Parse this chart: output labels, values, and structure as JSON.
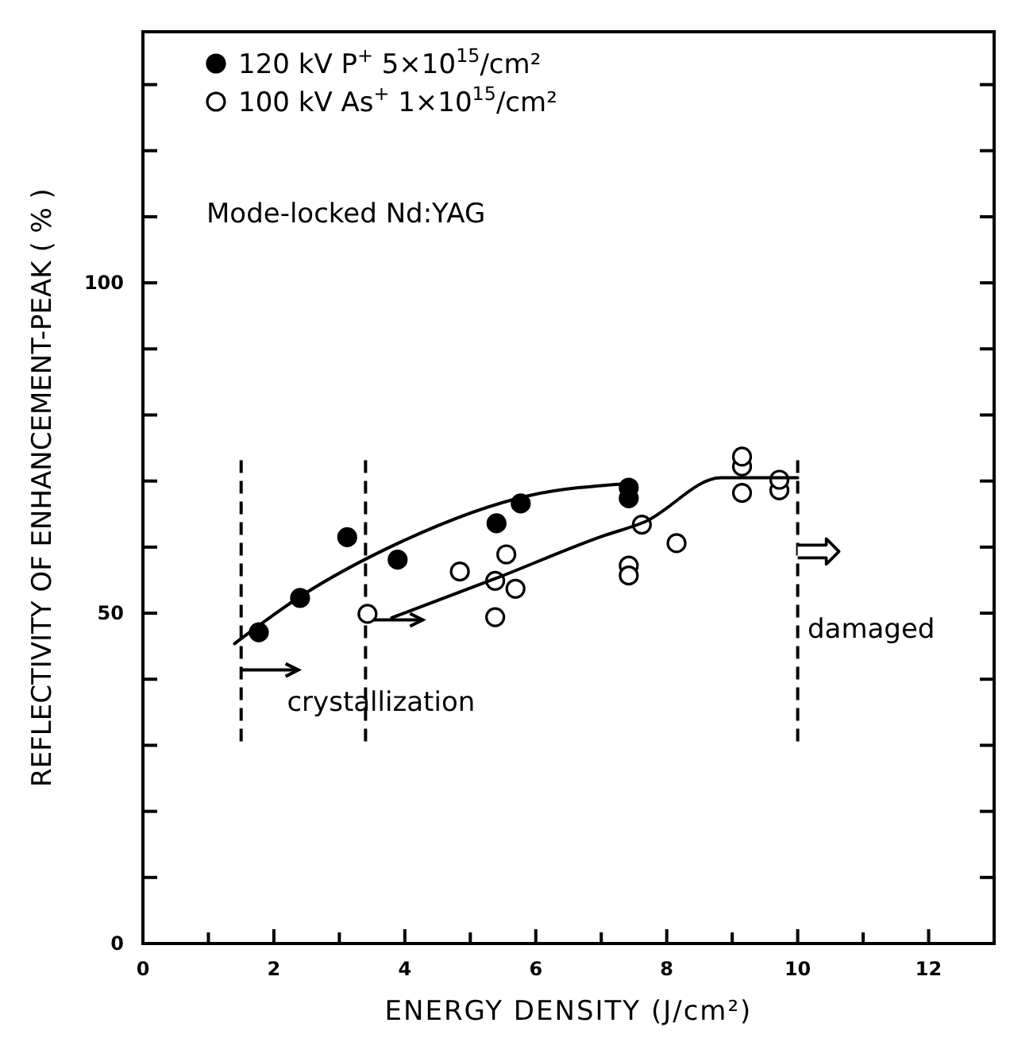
{
  "chart_data": {
    "type": "scatter",
    "xlabel": "ENERGY  DENSITY  (J/cm²)",
    "ylabel": "REFLECTIVITY  OF ENHANCEMENT-PEAK ( % )",
    "xlim": [
      0,
      13
    ],
    "ylim": [
      0,
      138
    ],
    "xticks": [
      0,
      {
        "value": 1,
        "label": null
      },
      2,
      {
        "value": 3,
        "label": null
      },
      4,
      {
        "value": 5,
        "label": null
      },
      6,
      {
        "value": 7,
        "label": null
      },
      8,
      {
        "value": 9,
        "label": null
      },
      10,
      {
        "value": 11,
        "label": null
      },
      12
    ],
    "yticks": [
      0,
      {
        "value": 10,
        "label": null
      },
      {
        "value": 20,
        "label": null
      },
      {
        "value": 30,
        "label": null
      },
      {
        "value": 40,
        "label": null
      },
      50,
      {
        "value": 60,
        "label": null
      },
      {
        "value": 70,
        "label": null
      },
      {
        "value": 80,
        "label": null
      },
      {
        "value": 90,
        "label": null
      },
      100,
      {
        "value": 110,
        "label": null
      },
      {
        "value": 120,
        "label": null
      },
      {
        "value": 130,
        "label": null
      }
    ],
    "grid": false,
    "legend": "top left",
    "series": [
      {
        "name": "120 kV  P$^{+}$  5×10$^{15}$/cm²",
        "color": "#000000",
        "marker": "circle",
        "x": [
          1.77,
          2.4,
          3.12,
          3.89,
          5.4,
          5.77,
          7.42,
          7.42
        ],
        "values": [
          47.1,
          52.3,
          61.5,
          58.1,
          63.6,
          66.6,
          69.0,
          67.4
        ]
      },
      {
        "name": "100 kV As$^{+}$  1×10$^{15}$/cm²",
        "color": "#ffffff",
        "marker": "circle",
        "x": [
          3.43,
          4.84,
          5.55,
          5.38,
          5.69,
          5.38,
          7.42,
          7.42,
          7.62,
          8.15,
          9.15,
          9.15,
          9.15,
          9.72,
          9.72
        ],
        "values": [
          49.9,
          56.3,
          58.9,
          54.9,
          53.7,
          49.4,
          57.2,
          55.7,
          63.4,
          60.6,
          68.2,
          72.2,
          73.7,
          68.6,
          70.2
        ]
      },
      {
        "type": "line",
        "color": "#000000",
        "marker": "none",
        "line_style": "solid",
        "x": [
          1.4,
          2.4,
          3.9,
          5.9,
          7.4
        ],
        "values": [
          45.4,
          52.5,
          60.6,
          67.8,
          69.6
        ]
      },
      {
        "type": "line",
        "color": "#000000",
        "marker": "none",
        "line_style": "solid",
        "x": [
          3.8,
          5.4,
          7.0,
          7.66,
          8.83,
          10
        ],
        "values": [
          49.3,
          55.3,
          61.6,
          63.8,
          70.5,
          70.5
        ]
      }
    ],
    "ref_lines": [
      {
        "axis": "x",
        "value": 1.5,
        "line_style": "dashed"
      },
      {
        "axis": "x",
        "value": 3.4,
        "line_style": "dashed"
      },
      {
        "axis": "x",
        "value": 10,
        "line_style": "dashed"
      }
    ],
    "annotations": [
      "Mode-locked  Nd:YAG",
      "crystallization",
      "damaged"
    ]
  }
}
